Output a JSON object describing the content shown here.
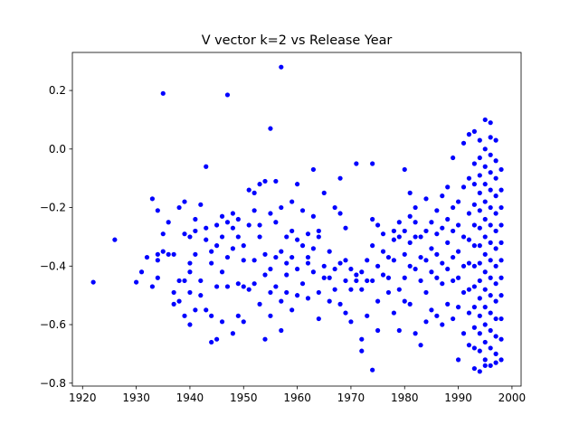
{
  "chart_data": {
    "type": "scatter",
    "title": "V vector k=2 vs Release Year",
    "color": "#0000ff",
    "xlim": [
      1918.1,
      2001.7
    ],
    "ylim": [
      -0.81,
      0.33
    ],
    "xticks": [
      1920,
      1930,
      1940,
      1950,
      1960,
      1970,
      1980,
      1990,
      2000
    ],
    "yticks": [
      {
        "value": -0.8,
        "label": "−0.8"
      },
      {
        "value": -0.6,
        "label": "−0.6"
      },
      {
        "value": -0.4,
        "label": "−0.4"
      },
      {
        "value": -0.2,
        "label": "−0.2"
      },
      {
        "value": 0,
        "label": "0.0"
      },
      0.2
    ],
    "x": [
      1922,
      1926,
      1930,
      1931,
      1932,
      1933,
      1933,
      1934,
      1934,
      1934,
      1934,
      1935,
      1935,
      1935,
      1936,
      1936,
      1937,
      1937,
      1937,
      1938,
      1938,
      1938,
      1939,
      1939,
      1939,
      1939,
      1940,
      1940,
      1940,
      1940,
      1940,
      1941,
      1941,
      1941,
      1941,
      1942,
      1942,
      1942,
      1943,
      1943,
      1943,
      1943,
      1944,
      1944,
      1944,
      1944,
      1945,
      1945,
      1945,
      1945,
      1946,
      1946,
      1946,
      1946,
      1947,
      1947,
      1947,
      1947,
      1948,
      1948,
      1948,
      1948,
      1949,
      1949,
      1949,
      1949,
      1950,
      1950,
      1950,
      1950,
      1951,
      1951,
      1951,
      1952,
      1952,
      1952,
      1952,
      1953,
      1953,
      1953,
      1953,
      1954,
      1954,
      1954,
      1954,
      1955,
      1955,
      1955,
      1955,
      1955,
      1956,
      1956,
      1956,
      1956,
      1957,
      1957,
      1957,
      1957,
      1957,
      1958,
      1958,
      1958,
      1958,
      1959,
      1959,
      1959,
      1959,
      1960,
      1960,
      1960,
      1960,
      1961,
      1961,
      1961,
      1962,
      1962,
      1962,
      1962,
      1963,
      1963,
      1963,
      1963,
      1964,
      1964,
      1964,
      1964,
      1965,
      1965,
      1965,
      1966,
      1966,
      1966,
      1967,
      1967,
      1967,
      1968,
      1968,
      1968,
      1968,
      1969,
      1969,
      1969,
      1969,
      1970,
      1970,
      1970,
      1971,
      1971,
      1971,
      1972,
      1972,
      1972,
      1972,
      1973,
      1973,
      1973,
      1974,
      1974,
      1974,
      1974,
      1974,
      1975,
      1975,
      1975,
      1975,
      1976,
      1976,
      1976,
      1977,
      1977,
      1977,
      1978,
      1978,
      1978,
      1978,
      1979,
      1979,
      1979,
      1979,
      1980,
      1980,
      1980,
      1980,
      1980,
      1981,
      1981,
      1981,
      1981,
      1981,
      1982,
      1982,
      1982,
      1982,
      1982,
      1983,
      1983,
      1983,
      1983,
      1984,
      1984,
      1984,
      1984,
      1984,
      1985,
      1985,
      1985,
      1985,
      1986,
      1986,
      1986,
      1986,
      1986,
      1987,
      1987,
      1987,
      1987,
      1987,
      1988,
      1988,
      1988,
      1988,
      1988,
      1989,
      1989,
      1989,
      1989,
      1989,
      1989,
      1990,
      1990,
      1990,
      1990,
      1990,
      1990,
      1991,
      1991,
      1991,
      1991,
      1991,
      1991,
      1992,
      1992,
      1992,
      1992,
      1992,
      1992,
      1992,
      1992,
      1993,
      1993,
      1993,
      1993,
      1993,
      1993,
      1993,
      1993,
      1993,
      1993,
      1993,
      1993,
      1994,
      1994,
      1994,
      1994,
      1994,
      1994,
      1994,
      1994,
      1994,
      1994,
      1994,
      1994,
      1994,
      1994,
      1995,
      1995,
      1995,
      1995,
      1995,
      1995,
      1995,
      1995,
      1995,
      1995,
      1995,
      1995,
      1995,
      1995,
      1995,
      1996,
      1996,
      1996,
      1996,
      1996,
      1996,
      1996,
      1996,
      1996,
      1996,
      1996,
      1996,
      1996,
      1996,
      1996,
      1997,
      1997,
      1997,
      1997,
      1997,
      1997,
      1997,
      1997,
      1997,
      1997,
      1997,
      1997,
      1997,
      1997,
      1998,
      1998,
      1998,
      1998,
      1998,
      1998,
      1998,
      1998,
      1998,
      1998,
      1998
    ],
    "y": [
      -0.455,
      -0.31,
      -0.455,
      -0.42,
      -0.37,
      -0.17,
      -0.47,
      -0.36,
      -0.38,
      -0.44,
      -0.21,
      0.19,
      -0.35,
      -0.29,
      -0.25,
      -0.36,
      -0.49,
      -0.36,
      -0.53,
      -0.52,
      -0.45,
      -0.2,
      -0.18,
      -0.29,
      -0.57,
      -0.45,
      -0.3,
      -0.6,
      -0.39,
      -0.42,
      -0.49,
      -0.24,
      -0.55,
      -0.28,
      -0.36,
      -0.45,
      -0.19,
      -0.5,
      -0.06,
      -0.27,
      -0.55,
      -0.31,
      -0.66,
      -0.57,
      -0.35,
      -0.39,
      -0.26,
      -0.65,
      -0.47,
      -0.33,
      -0.23,
      -0.42,
      -0.3,
      -0.59,
      0.185,
      -0.25,
      -0.37,
      -0.47,
      -0.22,
      -0.27,
      -0.34,
      -0.63,
      -0.46,
      -0.3,
      -0.57,
      -0.24,
      -0.59,
      -0.47,
      -0.33,
      -0.38,
      -0.14,
      -0.48,
      -0.26,
      -0.46,
      -0.21,
      -0.38,
      -0.15,
      -0.12,
      -0.26,
      -0.53,
      -0.3,
      -0.65,
      -0.11,
      -0.36,
      -0.43,
      0.07,
      -0.49,
      -0.22,
      -0.41,
      -0.57,
      -0.11,
      -0.25,
      -0.37,
      -0.47,
      0.28,
      -0.52,
      -0.2,
      -0.35,
      -0.62,
      -0.43,
      -0.3,
      -0.49,
      -0.39,
      -0.18,
      -0.28,
      -0.37,
      -0.55,
      -0.12,
      -0.41,
      -0.31,
      -0.5,
      -0.46,
      -0.33,
      -0.21,
      -0.29,
      -0.39,
      -0.51,
      -0.37,
      -0.07,
      -0.34,
      -0.42,
      -0.23,
      -0.3,
      -0.58,
      -0.49,
      -0.28,
      -0.15,
      -0.44,
      -0.4,
      -0.35,
      -0.52,
      -0.44,
      -0.2,
      -0.48,
      -0.41,
      -0.1,
      -0.22,
      -0.39,
      -0.53,
      -0.27,
      -0.45,
      -0.56,
      -0.38,
      -0.41,
      -0.48,
      -0.59,
      -0.05,
      -0.43,
      -0.45,
      -0.69,
      -0.42,
      -0.48,
      -0.65,
      -0.45,
      -0.38,
      -0.57,
      -0.05,
      -0.755,
      -0.24,
      -0.33,
      -0.45,
      -0.26,
      -0.4,
      -0.52,
      -0.62,
      -0.29,
      -0.43,
      -0.35,
      -0.44,
      -0.37,
      -0.49,
      -0.38,
      -0.56,
      -0.28,
      -0.31,
      -0.3,
      -0.48,
      -0.62,
      -0.25,
      -0.07,
      -0.28,
      -0.44,
      -0.36,
      -0.52,
      -0.15,
      -0.32,
      -0.53,
      -0.23,
      -0.4,
      -0.25,
      -0.41,
      -0.63,
      -0.2,
      -0.3,
      -0.3,
      -0.45,
      -0.67,
      -0.37,
      -0.17,
      -0.38,
      -0.49,
      -0.28,
      -0.59,
      -0.25,
      -0.34,
      -0.42,
      -0.55,
      -0.21,
      -0.29,
      -0.36,
      -0.44,
      -0.57,
      -0.16,
      -0.27,
      -0.39,
      -0.46,
      -0.6,
      -0.13,
      -0.24,
      -0.32,
      -0.41,
      -0.53,
      -0.03,
      -0.2,
      -0.28,
      -0.37,
      -0.45,
      -0.58,
      -0.72,
      -0.18,
      -0.26,
      -0.35,
      -0.44,
      -0.54,
      0.02,
      -0.13,
      -0.3,
      -0.4,
      -0.49,
      -0.63,
      0.05,
      -0.1,
      -0.22,
      -0.31,
      -0.39,
      -0.48,
      -0.56,
      -0.67,
      0.06,
      -0.05,
      -0.12,
      -0.19,
      -0.26,
      -0.33,
      -0.4,
      -0.47,
      -0.54,
      -0.61,
      -0.68,
      -0.75,
      0.03,
      -0.03,
      -0.09,
      -0.15,
      -0.21,
      -0.27,
      -0.33,
      -0.39,
      -0.45,
      -0.51,
      -0.57,
      -0.63,
      -0.69,
      -0.76,
      0.1,
      0.0,
      -0.06,
      -0.12,
      -0.18,
      -0.24,
      -0.3,
      -0.36,
      -0.42,
      -0.48,
      -0.54,
      -0.6,
      -0.66,
      -0.72,
      -0.74,
      0.09,
      0.04,
      -0.02,
      -0.08,
      -0.14,
      -0.2,
      -0.26,
      -0.32,
      -0.38,
      -0.44,
      -0.5,
      -0.56,
      -0.62,
      -0.68,
      -0.74,
      0.03,
      -0.04,
      -0.1,
      -0.16,
      -0.22,
      -0.28,
      -0.34,
      -0.4,
      -0.46,
      -0.52,
      -0.58,
      -0.64,
      -0.7,
      -0.73,
      -0.07,
      -0.14,
      -0.2,
      -0.26,
      -0.32,
      -0.38,
      -0.44,
      -0.5,
      -0.58,
      -0.65,
      -0.72
    ]
  }
}
